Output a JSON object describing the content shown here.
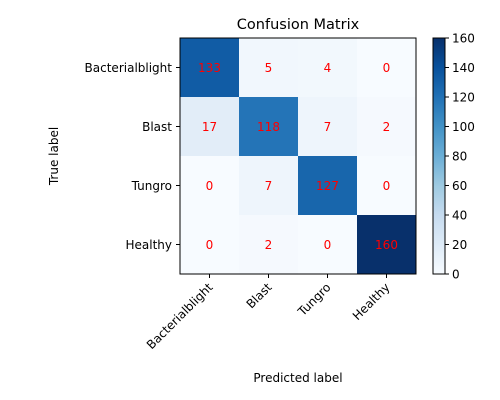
{
  "chart_data": {
    "type": "heatmap",
    "title": "Confusion Matrix",
    "xlabel": "Predicted label",
    "ylabel": "True label",
    "row_labels": [
      "Bacterialblight",
      "Blast",
      "Tungro",
      "Healthy"
    ],
    "col_labels": [
      "Bacterialblight",
      "Blast",
      "Tungro",
      "Healthy"
    ],
    "values": [
      [
        133,
        5,
        4,
        0
      ],
      [
        17,
        118,
        7,
        2
      ],
      [
        0,
        7,
        127,
        0
      ],
      [
        0,
        2,
        0,
        160
      ]
    ],
    "vmin": 0,
    "vmax": 160,
    "colorbar_ticks": [
      0,
      20,
      40,
      60,
      80,
      100,
      120,
      140,
      160
    ],
    "colormap": "Blues",
    "cell_text_color": "#ff0000"
  }
}
